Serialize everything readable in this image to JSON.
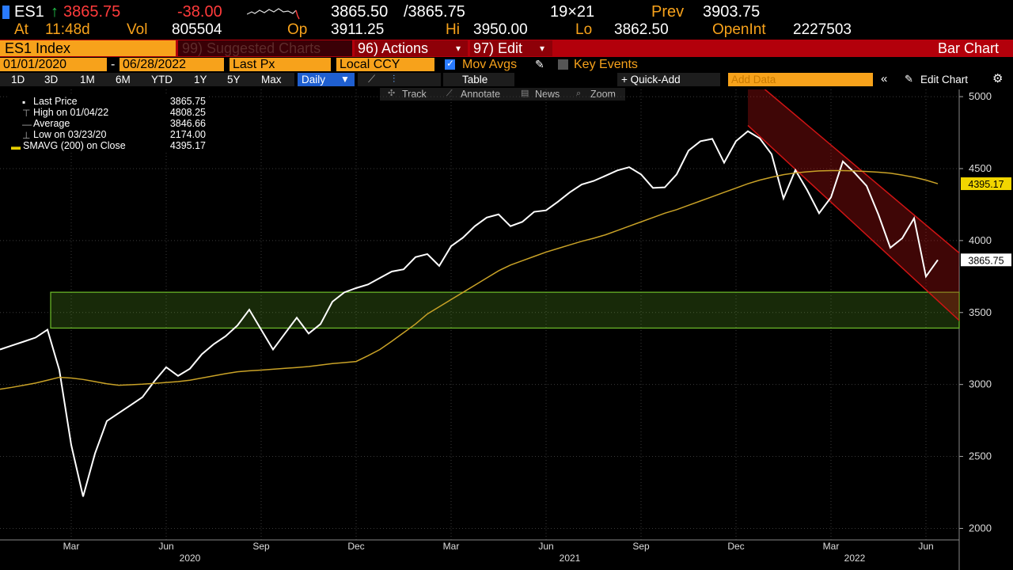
{
  "header": {
    "row1": {
      "ticker": "ES1",
      "last": "3865.75",
      "change": "-38.00",
      "bid": "3865.50",
      "ask": "/3865.75",
      "size": "19×21",
      "prev_label": "Prev",
      "prev": "3903.75"
    },
    "row2": {
      "at_label": "At",
      "time": "11:48d",
      "vol_label": "Vol",
      "vol": "805504",
      "op_label": "Op",
      "op": "3911.25",
      "hi_label": "Hi",
      "hi": "3950.00",
      "lo_label": "Lo",
      "lo": "3862.50",
      "oi_label": "OpenInt",
      "oi": "2227503"
    },
    "row3": {
      "security": "ES1 Index",
      "suggested": "99) Suggested Charts",
      "actions": "96) Actions",
      "edit": "97) Edit",
      "chart_type": "Bar Chart"
    },
    "row4": {
      "start": "01/01/2020",
      "dash": "-",
      "end": "06/28/2022",
      "field": "Last Px",
      "currency": "Local CCY",
      "mov_avgs": "Mov Avgs",
      "key_events": "Key Events"
    },
    "row5": {
      "periods": [
        "1D",
        "3D",
        "1M",
        "6M",
        "YTD",
        "1Y",
        "5Y",
        "Max"
      ],
      "frequency": "Daily",
      "table": "Table",
      "quick_add": "+ Quick-Add",
      "add_data": "Add Data",
      "edit_chart": "Edit Chart"
    },
    "row6": {
      "tools": [
        "Track",
        "Annotate",
        "News",
        "Zoom"
      ]
    }
  },
  "legend": {
    "rows": [
      {
        "label": "Last Price",
        "value": "3865.75"
      },
      {
        "label": "High on 01/04/22",
        "value": "4808.25"
      },
      {
        "label": "Average",
        "value": "3846.66"
      },
      {
        "label": "Low on 03/23/20",
        "value": "2174.00"
      },
      {
        "label": "SMAVG (200)  on Close",
        "value": "4395.17"
      }
    ]
  },
  "chart_data": {
    "type": "line",
    "categories": [
      null,
      null,
      null,
      null,
      null,
      null,
      "Mar",
      null,
      null,
      null,
      null,
      null,
      null,
      null,
      "Jun",
      null,
      null,
      null,
      null,
      null,
      null,
      null,
      "Sep",
      null,
      null,
      null,
      null,
      null,
      null,
      null,
      "Dec",
      null,
      null,
      null,
      null,
      null,
      null,
      null,
      "Mar",
      null,
      null,
      null,
      null,
      null,
      null,
      null,
      "Jun",
      null,
      null,
      null,
      null,
      null,
      null,
      null,
      "Sep",
      null,
      null,
      null,
      null,
      null,
      null,
      null,
      "Dec",
      null,
      null,
      null,
      null,
      null,
      null,
      null,
      "Mar",
      null,
      null,
      null,
      null,
      null,
      null,
      null,
      "Jun",
      null
    ],
    "years": [
      null,
      null,
      null,
      null,
      null,
      null,
      null,
      null,
      null,
      null,
      null,
      null,
      null,
      null,
      null,
      null,
      "2020",
      null,
      null,
      null,
      null,
      null,
      null,
      null,
      null,
      null,
      null,
      null,
      null,
      null,
      null,
      null,
      null,
      null,
      null,
      null,
      null,
      null,
      null,
      null,
      null,
      null,
      null,
      null,
      null,
      null,
      null,
      null,
      "2021",
      null,
      null,
      null,
      null,
      null,
      null,
      null,
      null,
      null,
      null,
      null,
      null,
      null,
      null,
      null,
      null,
      null,
      null,
      null,
      null,
      null,
      null,
      null,
      "2022",
      null,
      null,
      null,
      null,
      null,
      null,
      null
    ],
    "series": [
      {
        "name": "Last Price",
        "color": "#ffffff",
        "tag": "3865.75",
        "values": [
          3243,
          3271,
          3298,
          3326,
          3381,
          3100,
          2580,
          2221,
          2520,
          2746,
          2801,
          2856,
          2912,
          3022,
          3120,
          3060,
          3110,
          3210,
          3280,
          3335,
          3410,
          3520,
          3381,
          3243,
          3354,
          3464,
          3354,
          3420,
          3575,
          3640,
          3670,
          3695,
          3740,
          3785,
          3800,
          3885,
          3906,
          3824,
          3961,
          4020,
          4100,
          4160,
          4182,
          4100,
          4130,
          4200,
          4210,
          4270,
          4335,
          4390,
          4414,
          4450,
          4487,
          4510,
          4460,
          4366,
          4370,
          4460,
          4625,
          4690,
          4707,
          4541,
          4691,
          4760,
          4710,
          4600,
          4293,
          4490,
          4350,
          4190,
          4300,
          4550,
          4470,
          4380,
          4180,
          3950,
          4016,
          4155,
          3750,
          3865.75
        ]
      },
      {
        "name": "SMAVG (200)",
        "color": "#c9a227",
        "tag": "4395.17",
        "values": [
          2967,
          2980,
          2995,
          3010,
          3030,
          3050,
          3045,
          3035,
          3020,
          3005,
          2995,
          2998,
          3002,
          3008,
          3014,
          3020,
          3030,
          3045,
          3060,
          3075,
          3088,
          3095,
          3100,
          3106,
          3112,
          3118,
          3125,
          3135,
          3145,
          3152,
          3160,
          3200,
          3243,
          3300,
          3360,
          3420,
          3490,
          3540,
          3590,
          3640,
          3690,
          3740,
          3790,
          3830,
          3860,
          3890,
          3920,
          3945,
          3970,
          3995,
          4016,
          4040,
          4070,
          4100,
          4130,
          4160,
          4190,
          4215,
          4245,
          4275,
          4305,
          4335,
          4365,
          4395,
          4420,
          4440,
          4458,
          4470,
          4478,
          4484,
          4486,
          4486,
          4484,
          4480,
          4475,
          4468,
          4455,
          4440,
          4420,
          4395.17
        ]
      }
    ],
    "zone": {
      "from": 3392,
      "to": 3641,
      "color": "#6fbf2a"
    },
    "channel": {
      "x": [
        63,
        81
      ],
      "upper": [
        5150,
        3900
      ],
      "lower": [
        4800,
        3430
      ],
      "color": "#d01414"
    },
    "ylim": [
      1920,
      5050
    ],
    "yticks": [
      2000,
      2500,
      3000,
      3500,
      4000,
      4500,
      5000
    ],
    "grid": true
  }
}
